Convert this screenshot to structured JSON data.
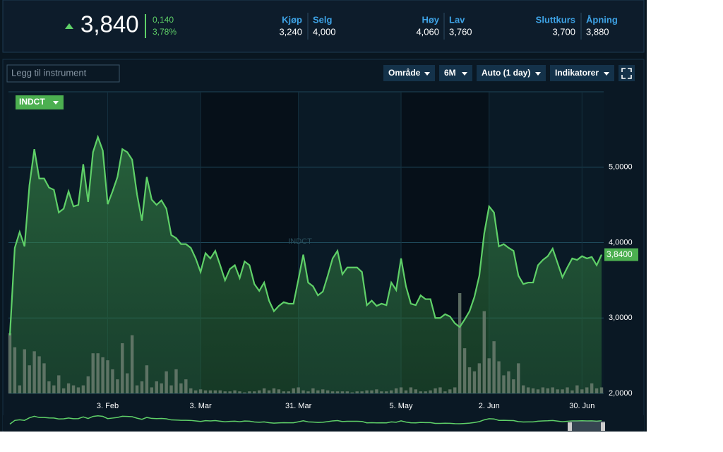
{
  "header": {
    "price": "3,840",
    "change": "0,140",
    "change_pct": "3,78%",
    "quotes": [
      {
        "label": "Kjøp",
        "value": "3,240"
      },
      {
        "label": "Selg",
        "value": "4,000"
      },
      {
        "label": "Høy",
        "value": "4,060"
      },
      {
        "label": "Lav",
        "value": "3,760"
      },
      {
        "label": "Sluttkurs",
        "value": "3,700"
      },
      {
        "label": "Åpning",
        "value": "3,880"
      }
    ]
  },
  "toolbar": {
    "search_placeholder": "Legg til instrument",
    "buttons": [
      "Område",
      "6M",
      "Auto (1 day)",
      "Indikatorer"
    ]
  },
  "chart_data": {
    "type": "line",
    "categories": [
      null,
      null,
      null,
      null,
      null,
      null,
      null,
      null,
      null,
      null,
      null,
      null,
      null,
      null,
      null,
      null,
      null,
      null,
      null,
      null,
      "3. Feb",
      null,
      null,
      null,
      null,
      null,
      null,
      null,
      null,
      null,
      null,
      null,
      null,
      null,
      null,
      null,
      null,
      null,
      null,
      "3. Mar",
      null,
      null,
      null,
      null,
      null,
      null,
      null,
      null,
      null,
      null,
      null,
      null,
      null,
      null,
      null,
      null,
      null,
      null,
      null,
      "31. Mar",
      null,
      null,
      null,
      null,
      null,
      null,
      null,
      null,
      null,
      null,
      null,
      null,
      null,
      null,
      null,
      null,
      null,
      null,
      null,
      null,
      "5. May",
      null,
      null,
      null,
      null,
      null,
      null,
      null,
      null,
      null,
      null,
      null,
      null,
      null,
      null,
      null,
      null,
      null,
      "2. Jun",
      null,
      null,
      null,
      null,
      null,
      null,
      null,
      null,
      null,
      null,
      null,
      null,
      null,
      null,
      null,
      null,
      null,
      null,
      "30. Jun",
      null,
      null,
      null,
      null
    ],
    "series": [
      {
        "name": "INDCT",
        "color": "#5fd068",
        "values": [
          2.77,
          3.93,
          4.14,
          3.95,
          4.76,
          5.24,
          4.85,
          4.85,
          4.73,
          4.7,
          4.4,
          4.45,
          4.68,
          4.48,
          4.5,
          5.04,
          4.54,
          5.2,
          5.4,
          5.22,
          4.51,
          4.68,
          4.87,
          5.24,
          5.2,
          5.1,
          4.64,
          4.29,
          4.87,
          4.57,
          4.5,
          4.56,
          4.45,
          4.1,
          4.06,
          3.98,
          3.98,
          3.93,
          3.79,
          3.61,
          3.86,
          3.79,
          3.89,
          3.7,
          3.5,
          3.65,
          3.7,
          3.53,
          3.75,
          3.7,
          3.45,
          3.36,
          3.47,
          3.23,
          3.09,
          3.16,
          3.21,
          3.19,
          3.19,
          3.51,
          3.84,
          3.47,
          3.42,
          3.3,
          3.35,
          3.56,
          3.79,
          3.89,
          3.58,
          3.67,
          3.67,
          3.67,
          3.61,
          3.17,
          3.23,
          3.16,
          3.19,
          3.17,
          3.47,
          3.37,
          3.79,
          3.42,
          3.19,
          3.17,
          3.3,
          3.25,
          3.25,
          3.0,
          3.0,
          3.05,
          3.02,
          2.93,
          2.88,
          2.98,
          3.09,
          3.28,
          3.56,
          4.12,
          4.48,
          4.4,
          3.95,
          3.98,
          3.93,
          3.89,
          3.56,
          3.45,
          3.47,
          3.47,
          3.7,
          3.77,
          3.82,
          3.92,
          3.73,
          3.54,
          3.67,
          3.79,
          3.77,
          3.82,
          3.79,
          3.81,
          3.7,
          3.84
        ]
      }
    ],
    "current_label": "3,8400",
    "volume": {
      "color": "#6b7d6e",
      "values": [
        60,
        46,
        8,
        44,
        28,
        42,
        37,
        30,
        12,
        8,
        18,
        5,
        10,
        8,
        6,
        8,
        17,
        40,
        40,
        36,
        33,
        24,
        14,
        50,
        20,
        58,
        8,
        12,
        28,
        6,
        12,
        10,
        22,
        8,
        24,
        10,
        14,
        5,
        3,
        4,
        3,
        3,
        3,
        3,
        2,
        2,
        3,
        2,
        1,
        2,
        2,
        3,
        5,
        3,
        5,
        4,
        2,
        2,
        5,
        6,
        3,
        2,
        5,
        3,
        4,
        3,
        2,
        2,
        2,
        2,
        1,
        2,
        2,
        3,
        3,
        4,
        2,
        2,
        3,
        5,
        6,
        3,
        6,
        4,
        2,
        2,
        3,
        5,
        6,
        2,
        4,
        6,
        100,
        45,
        26,
        22,
        30,
        82,
        35,
        52,
        32,
        18,
        22,
        14,
        30,
        8,
        6,
        5,
        4,
        6,
        5,
        6,
        4,
        4,
        6,
        3,
        8,
        4,
        6,
        10,
        5,
        6
      ]
    },
    "y2lim": [
      0,
      100
    ],
    "ylim": [
      2,
      6
    ],
    "yticks": [
      {
        "value": 2,
        "label": "2,0000"
      },
      {
        "value": 3,
        "label": "3,0000"
      },
      {
        "value": 4,
        "label": "4,0000"
      },
      {
        "value": 5,
        "label": "5,0000"
      }
    ],
    "grid": true
  }
}
